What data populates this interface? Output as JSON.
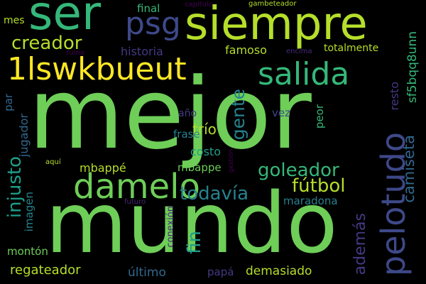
{
  "palette": {
    "background": "#000000",
    "green": "#6ece58",
    "yellowgreen": "#b5de2b",
    "teal": "#1f9e89",
    "lightteal": "#35b779",
    "blue": "#31688e",
    "steel": "#3e4989",
    "purple": "#482878",
    "darkpurple": "#440154",
    "indigo": "#443983",
    "cyan": "#26828e",
    "lime": "#90d743",
    "yellow": "#fde725"
  },
  "words": [
    {
      "text": "mejor",
      "color": "#6ece58",
      "weight": 1.0
    },
    {
      "text": "mundo",
      "color": "#6ece58",
      "weight": 0.95
    },
    {
      "text": "siempre",
      "color": "#b5de2b",
      "weight": 0.55
    },
    {
      "text": "ser",
      "color": "#35b779",
      "weight": 0.45
    },
    {
      "text": "psg",
      "color": "#3e4989",
      "weight": 0.35
    },
    {
      "text": "1lswkbueut",
      "color": "#fde725",
      "weight": 0.4
    },
    {
      "text": "salida",
      "color": "#35b779",
      "weight": 0.38
    },
    {
      "text": "damelo",
      "color": "#6ece58",
      "weight": 0.42
    },
    {
      "text": "pelotudo",
      "color": "#3e4989",
      "weight": 0.4
    },
    {
      "text": "creador",
      "color": "#b5de2b",
      "weight": 0.25
    },
    {
      "text": "goleador",
      "color": "#35b779",
      "weight": 0.22
    },
    {
      "text": "fútbol",
      "color": "#b5de2b",
      "weight": 0.22
    },
    {
      "text": "todavía",
      "color": "#26828e",
      "weight": 0.22
    },
    {
      "text": "injusto",
      "color": "#1f9e89",
      "weight": 0.22
    },
    {
      "text": "camiseta",
      "color": "#31688e",
      "weight": 0.2
    },
    {
      "text": "gente",
      "color": "#26828e",
      "weight": 0.22
    },
    {
      "text": "fin",
      "color": "#1f9e89",
      "weight": 0.22
    },
    {
      "text": "además",
      "color": "#443983",
      "weight": 0.2
    },
    {
      "text": "sf5bqq8unn",
      "color": "#35b779",
      "weight": 0.15
    },
    {
      "text": "historia",
      "color": "#443983",
      "weight": 0.13
    },
    {
      "text": "famoso",
      "color": "#b5de2b",
      "weight": 0.13
    },
    {
      "text": "totalmente",
      "color": "#b5de2b",
      "weight": 0.11
    },
    {
      "text": "final",
      "color": "#35b779",
      "weight": 0.12
    },
    {
      "text": "mes",
      "color": "#b5de2b",
      "weight": 0.1
    },
    {
      "text": "capitulo",
      "color": "#440154",
      "weight": 0.07
    },
    {
      "text": "gambeteador",
      "color": "#b5de2b",
      "weight": 0.07
    },
    {
      "text": "ruina",
      "color": "#440154",
      "weight": 0.07
    },
    {
      "text": "encima",
      "color": "#482878",
      "weight": 0.07
    },
    {
      "text": "resto",
      "color": "#443983",
      "weight": 0.12
    },
    {
      "text": "trío",
      "color": "#b5de2b",
      "weight": 0.15
    },
    {
      "text": "vez",
      "color": "#3e4989",
      "weight": 0.12
    },
    {
      "text": "par",
      "color": "#31688e",
      "weight": 0.12
    },
    {
      "text": "jugador",
      "color": "#31688e",
      "weight": 0.13
    },
    {
      "text": "frase",
      "color": "#26828e",
      "weight": 0.12
    },
    {
      "text": "año",
      "color": "#443983",
      "weight": 0.12
    },
    {
      "text": "peor",
      "color": "#35b779",
      "weight": 0.12
    },
    {
      "text": "costo",
      "color": "#1f9e89",
      "weight": 0.14
    },
    {
      "text": "mbappé",
      "color": "#b5de2b",
      "weight": 0.13
    },
    {
      "text": "mbappe",
      "color": "#6ece58",
      "weight": 0.12
    },
    {
      "text": "imagen",
      "color": "#26828e",
      "weight": 0.12
    },
    {
      "text": "aquí",
      "color": "#b5de2b",
      "weight": 0.07
    },
    {
      "text": "gestión",
      "color": "#440154",
      "weight": 0.06
    },
    {
      "text": "futuro",
      "color": "#482878",
      "weight": 0.07
    },
    {
      "text": "maradona",
      "color": "#26828e",
      "weight": 0.12
    },
    {
      "text": "conexión",
      "color": "#482878",
      "weight": 0.1
    },
    {
      "text": "montón",
      "color": "#6ece58",
      "weight": 0.12
    },
    {
      "text": "regateador",
      "color": "#b5de2b",
      "weight": 0.14
    },
    {
      "text": "último",
      "color": "#31688e",
      "weight": 0.13
    },
    {
      "text": "papá",
      "color": "#443983",
      "weight": 0.12
    },
    {
      "text": "demasiado",
      "color": "#b5de2b",
      "weight": 0.13
    }
  ]
}
